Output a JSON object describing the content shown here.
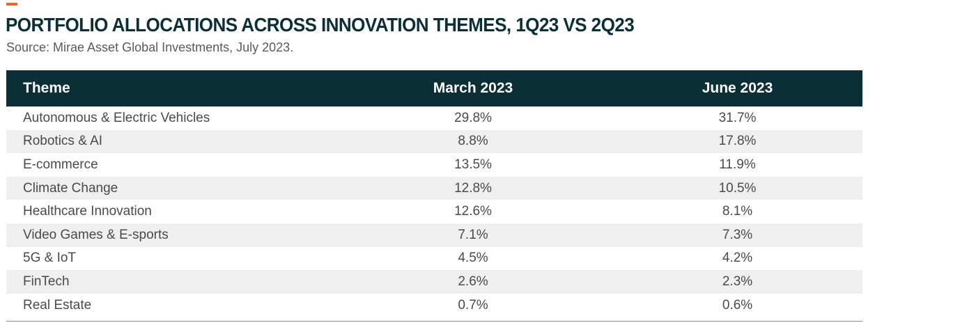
{
  "header": {
    "title": "PORTFOLIO ALLOCATIONS ACROSS INNOVATION THEMES, 1Q23 VS 2Q23",
    "source": "Source: Mirae Asset Global Investments, July 2023."
  },
  "colors": {
    "accent": "#f26522",
    "header_bg": "#0b2f36",
    "stripe": "#efefef"
  },
  "table": {
    "columns": [
      "Theme",
      "March 2023",
      "June 2023"
    ],
    "rows": [
      {
        "theme": "Autonomous & Electric Vehicles",
        "march": "29.8%",
        "june": "31.7%"
      },
      {
        "theme": "Robotics & AI",
        "march": "8.8%",
        "june": "17.8%"
      },
      {
        "theme": "E-commerce",
        "march": "13.5%",
        "june": "11.9%"
      },
      {
        "theme": "Climate Change",
        "march": "12.8%",
        "june": "10.5%"
      },
      {
        "theme": "Healthcare Innovation",
        "march": "12.6%",
        "june": "8.1%"
      },
      {
        "theme": "Video Games & E-sports",
        "march": "7.1%",
        "june": "7.3%"
      },
      {
        "theme": "5G & IoT",
        "march": "4.5%",
        "june": "4.2%"
      },
      {
        "theme": "FinTech",
        "march": "2.6%",
        "june": "2.3%"
      },
      {
        "theme": "Real Estate",
        "march": "0.7%",
        "june": "0.6%"
      }
    ]
  }
}
